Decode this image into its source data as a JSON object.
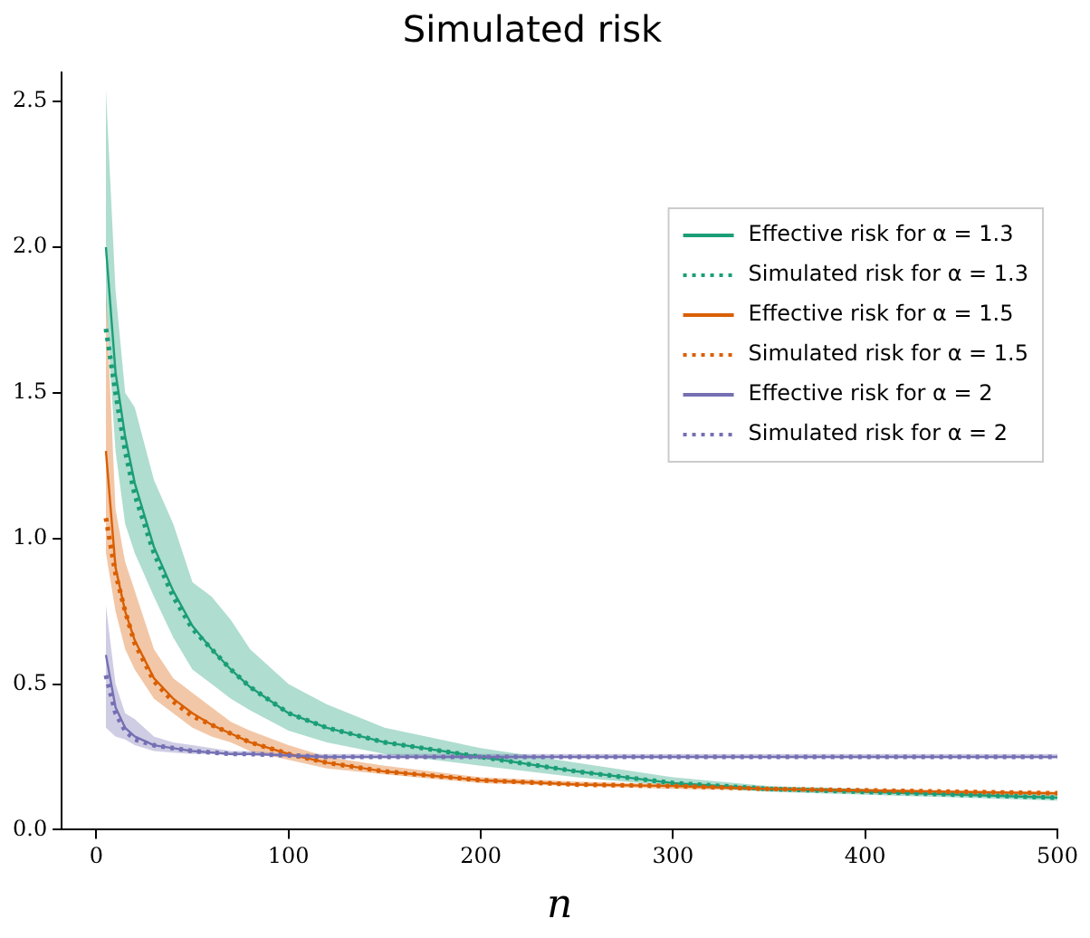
{
  "chart_data": {
    "type": "line",
    "title": "Simulated risk",
    "xlabel": "n",
    "xlim": [
      -18,
      500
    ],
    "xticks": [
      0,
      100,
      200,
      300,
      400,
      500
    ],
    "ylim": [
      0,
      2.6
    ],
    "yticks": [
      {
        "value": 0,
        "label": "0.0"
      },
      {
        "value": 0.5,
        "label": "0.5"
      },
      {
        "value": 1,
        "label": "1.0"
      },
      {
        "value": 1.5,
        "label": "1.5"
      },
      {
        "value": 2,
        "label": "2.0"
      },
      {
        "value": 2.5,
        "label": "2.5"
      }
    ],
    "x": [
      5,
      10,
      15,
      20,
      30,
      40,
      50,
      60,
      70,
      80,
      100,
      120,
      150,
      200,
      250,
      300,
      350,
      400,
      450,
      500
    ],
    "legend": "top right",
    "grid": false,
    "series": [
      {
        "name": "Effective risk for α = 1.3",
        "color": "#1b9e77",
        "line_style": "solid",
        "values": [
          2.0,
          1.57,
          1.35,
          1.19,
          0.97,
          0.82,
          0.7,
          0.62,
          0.55,
          0.49,
          0.4,
          0.35,
          0.3,
          0.25,
          0.2,
          0.16,
          0.14,
          0.13,
          0.12,
          0.11
        ]
      },
      {
        "name": "Simulated risk for α = 1.3",
        "color": "#1b9e77",
        "line_style": "dotted",
        "values": [
          1.72,
          1.5,
          1.3,
          1.15,
          0.95,
          0.8,
          0.69,
          0.62,
          0.55,
          0.49,
          0.4,
          0.35,
          0.3,
          0.25,
          0.2,
          0.16,
          0.14,
          0.13,
          0.12,
          0.11
        ],
        "lower": [
          1.8,
          1.3,
          1.05,
          0.95,
          0.8,
          0.66,
          0.55,
          0.5,
          0.45,
          0.41,
          0.34,
          0.3,
          0.26,
          0.22,
          0.18,
          0.15,
          0.13,
          0.12,
          0.11,
          0.1
        ],
        "upper": [
          2.54,
          1.85,
          1.5,
          1.45,
          1.2,
          1.05,
          0.85,
          0.8,
          0.72,
          0.62,
          0.5,
          0.43,
          0.35,
          0.28,
          0.23,
          0.18,
          0.15,
          0.14,
          0.13,
          0.12
        ]
      },
      {
        "name": "Effective risk for α = 1.5",
        "color": "#d95f02",
        "line_style": "solid",
        "values": [
          1.3,
          0.9,
          0.75,
          0.65,
          0.52,
          0.45,
          0.4,
          0.36,
          0.33,
          0.3,
          0.26,
          0.23,
          0.2,
          0.17,
          0.155,
          0.15,
          0.14,
          0.135,
          0.13,
          0.125
        ]
      },
      {
        "name": "Simulated risk for α = 1.5",
        "color": "#d95f02",
        "line_style": "dotted",
        "values": [
          1.07,
          0.88,
          0.75,
          0.64,
          0.51,
          0.44,
          0.39,
          0.36,
          0.33,
          0.3,
          0.26,
          0.23,
          0.2,
          0.17,
          0.155,
          0.15,
          0.14,
          0.135,
          0.13,
          0.125
        ],
        "lower": [
          0.95,
          0.75,
          0.62,
          0.55,
          0.45,
          0.4,
          0.35,
          0.32,
          0.3,
          0.27,
          0.24,
          0.21,
          0.19,
          0.16,
          0.15,
          0.14,
          0.135,
          0.13,
          0.125,
          0.12
        ],
        "upper": [
          1.85,
          1.1,
          0.92,
          0.82,
          0.62,
          0.52,
          0.47,
          0.42,
          0.37,
          0.34,
          0.29,
          0.25,
          0.22,
          0.18,
          0.165,
          0.155,
          0.145,
          0.14,
          0.135,
          0.13
        ]
      },
      {
        "name": "Effective risk for α = 2",
        "color": "#7570b3",
        "line_style": "solid",
        "values": [
          0.6,
          0.42,
          0.35,
          0.32,
          0.29,
          0.28,
          0.27,
          0.265,
          0.26,
          0.26,
          0.255,
          0.25,
          0.25,
          0.25,
          0.25,
          0.25,
          0.25,
          0.25,
          0.25,
          0.25
        ]
      },
      {
        "name": "Simulated risk for α = 2",
        "color": "#7570b3",
        "line_style": "dotted",
        "values": [
          0.53,
          0.4,
          0.34,
          0.31,
          0.29,
          0.28,
          0.27,
          0.265,
          0.26,
          0.26,
          0.255,
          0.25,
          0.25,
          0.25,
          0.25,
          0.25,
          0.25,
          0.25,
          0.25,
          0.25
        ],
        "lower": [
          0.35,
          0.32,
          0.31,
          0.29,
          0.27,
          0.265,
          0.26,
          0.26,
          0.255,
          0.255,
          0.25,
          0.245,
          0.245,
          0.245,
          0.245,
          0.245,
          0.245,
          0.245,
          0.245,
          0.245
        ],
        "upper": [
          0.77,
          0.5,
          0.4,
          0.38,
          0.32,
          0.3,
          0.29,
          0.28,
          0.27,
          0.27,
          0.26,
          0.26,
          0.26,
          0.26,
          0.26,
          0.26,
          0.26,
          0.26,
          0.26,
          0.26
        ]
      }
    ]
  }
}
